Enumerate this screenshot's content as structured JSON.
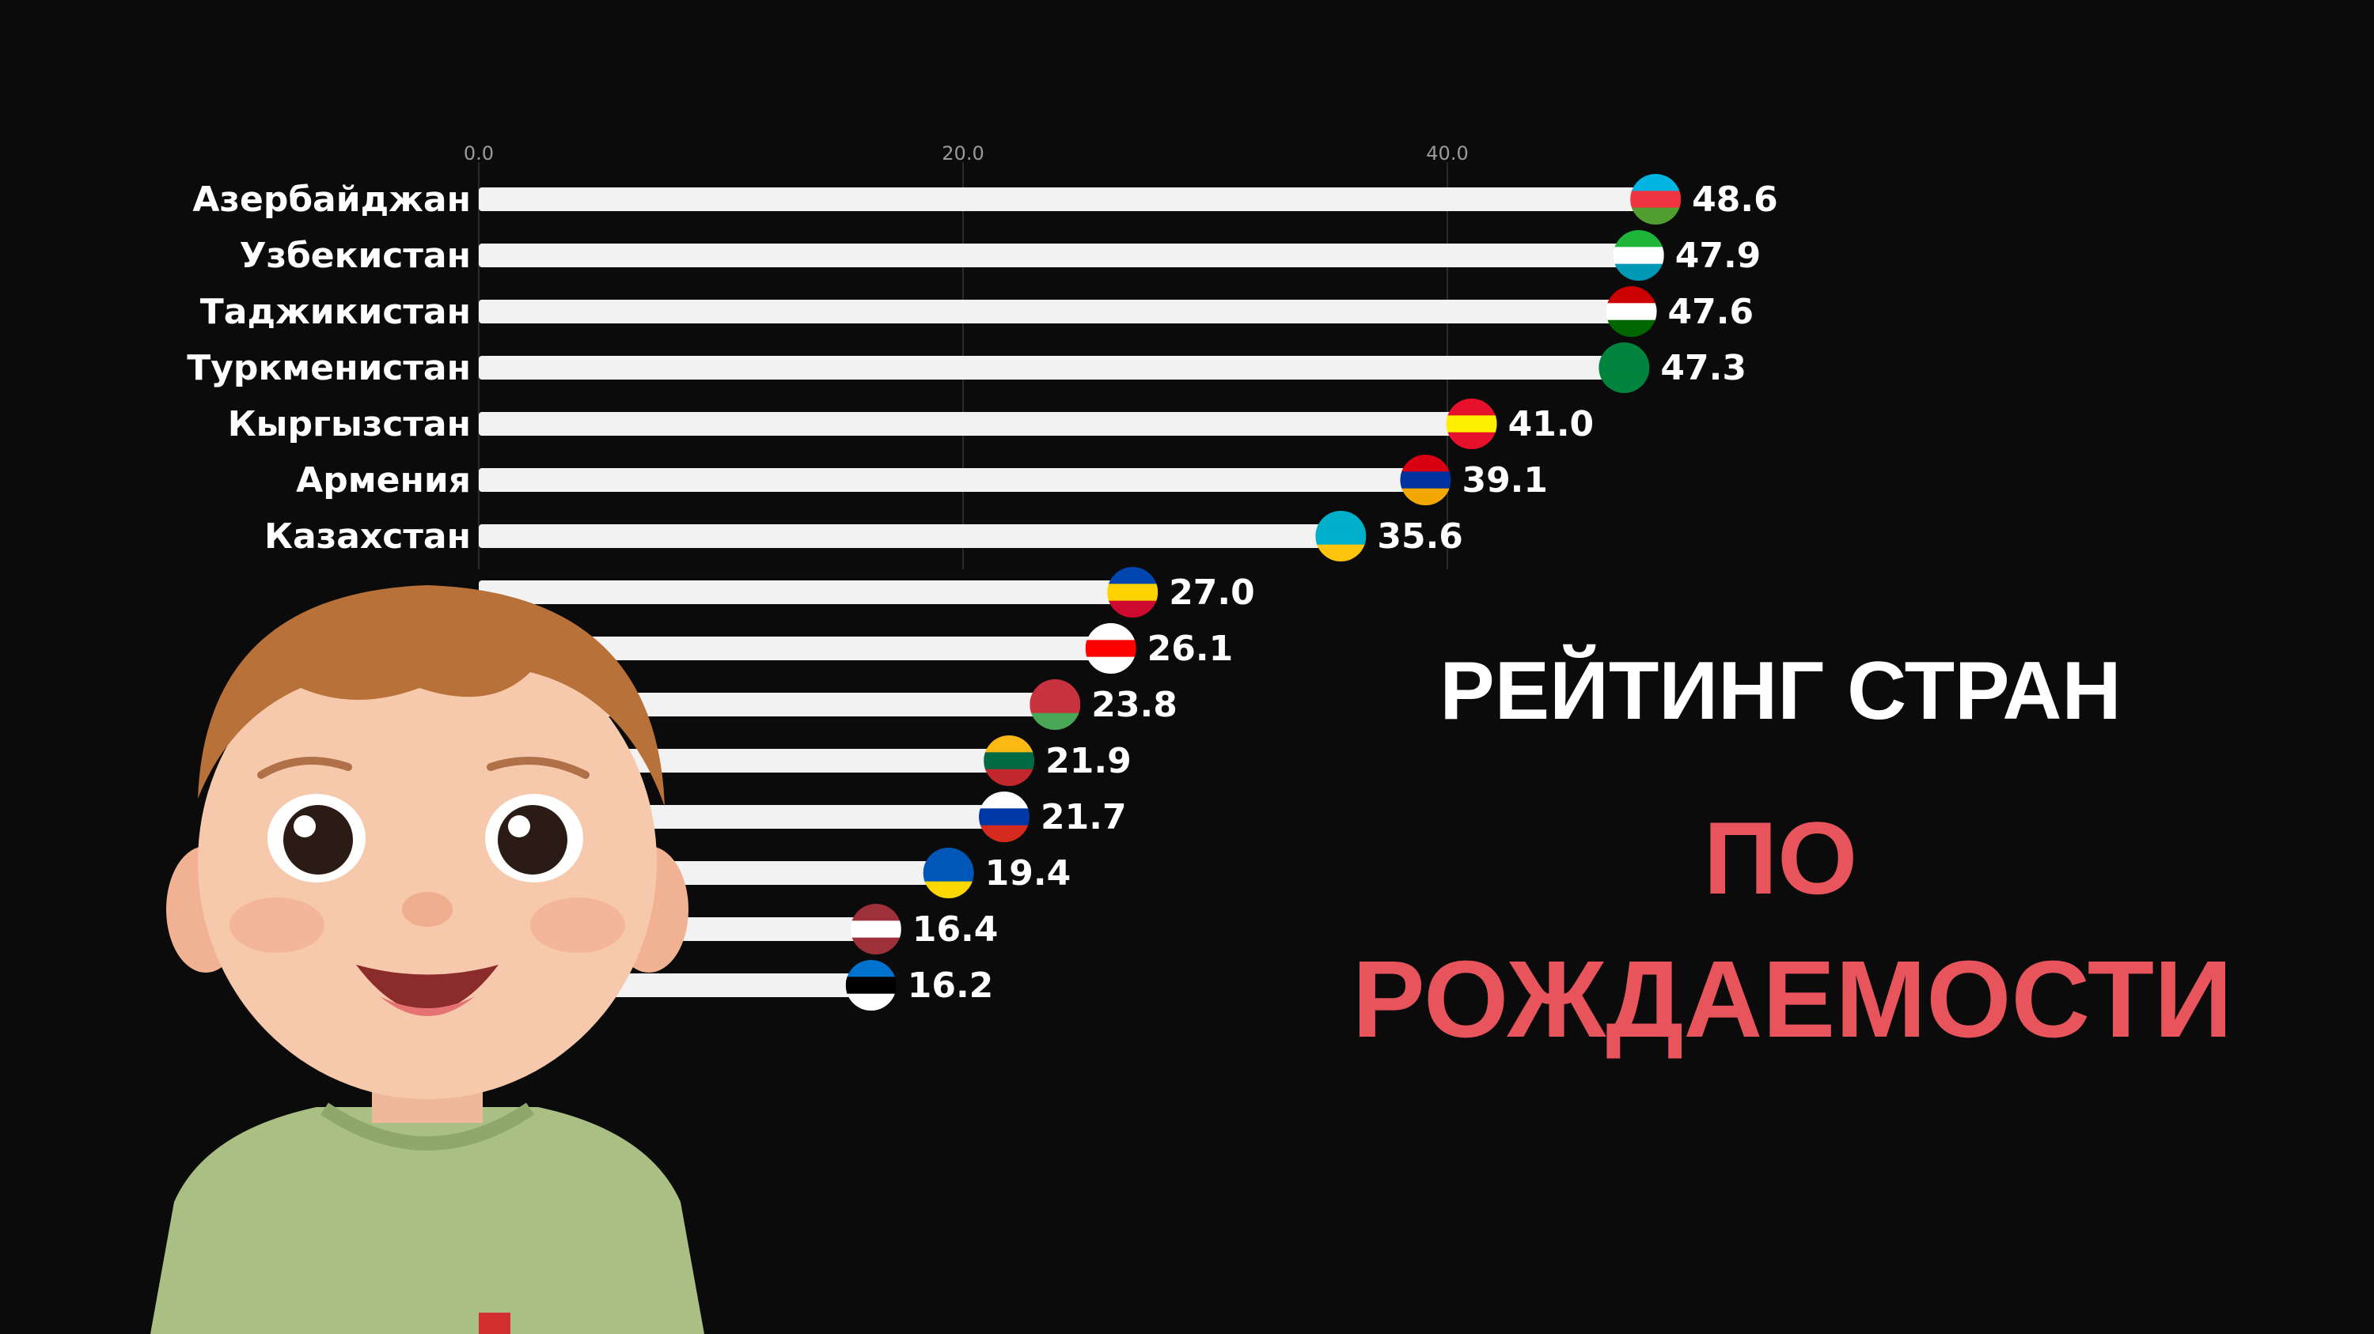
{
  "headline": {
    "line1": "РЕЙТИНГ СТРАН",
    "line2": "ПО",
    "line3": "РОЖДАЕМОСТИ",
    "line1_color": "#ffffff",
    "accent_color": "#e8545c"
  },
  "chart_data": {
    "type": "bar",
    "orientation": "horizontal",
    "x_ticks": [
      "0.0",
      "20.0",
      "40.0"
    ],
    "xlim": [
      0,
      48.6
    ],
    "grid": true,
    "bar_color": "#f2f2f2",
    "categories": [
      "Азербайджан",
      "Узбекистан",
      "Таджикистан",
      "Туркменистан",
      "Кыргызстан",
      "Армения",
      "Казахстан",
      "",
      "",
      "",
      "",
      "",
      "",
      "",
      ""
    ],
    "values": [
      48.6,
      47.9,
      47.6,
      47.3,
      41.0,
      39.1,
      35.6,
      27.0,
      26.1,
      23.8,
      21.9,
      21.7,
      19.4,
      16.4,
      16.2
    ],
    "value_labels": [
      "48.6",
      "47.9",
      "47.6",
      "47.3",
      "41.0",
      "39.1",
      "35.6",
      "27.0",
      "26.1",
      "23.8",
      "21.9",
      "21.7",
      "19.4",
      "16.4",
      "16.2"
    ],
    "flag_icons": [
      "azerbaijan-flag-icon",
      "uzbekistan-flag-icon",
      "tajikistan-flag-icon",
      "turkmenistan-flag-icon",
      "kyrgyzstan-flag-icon",
      "armenia-flag-icon",
      "kazakhstan-flag-icon",
      "moldova-flag-icon",
      "georgia-flag-icon",
      "belarus-flag-icon",
      "lithuania-flag-icon",
      "russia-flag-icon",
      "ukraine-flag-icon",
      "latvia-flag-icon",
      "estonia-flag-icon"
    ],
    "flag_colors": [
      [
        "#00b5e2",
        "#ef3340",
        "#509e2f"
      ],
      [
        "#1eb53a",
        "#ffffff",
        "#0099b5"
      ],
      [
        "#cc0000",
        "#ffffff",
        "#006600"
      ],
      [
        "#00843d",
        "#00843d",
        "#00843d"
      ],
      [
        "#e8112d",
        "#ffef00",
        "#e8112d"
      ],
      [
        "#d90012",
        "#0033a0",
        "#f2a800"
      ],
      [
        "#00afca",
        "#00afca",
        "#fec50c"
      ],
      [
        "#0046ae",
        "#ffd200",
        "#cc092f"
      ],
      [
        "#ffffff",
        "#ff0000",
        "#ffffff"
      ],
      [
        "#c8313e",
        "#c8313e",
        "#4aa657"
      ],
      [
        "#fdb913",
        "#006a44",
        "#c1272d"
      ],
      [
        "#ffffff",
        "#0039a6",
        "#d52b1e"
      ],
      [
        "#0057b7",
        "#0057b7",
        "#ffd700"
      ],
      [
        "#9e3039",
        "#ffffff",
        "#9e3039"
      ],
      [
        "#0072ce",
        "#000000",
        "#ffffff"
      ]
    ]
  }
}
